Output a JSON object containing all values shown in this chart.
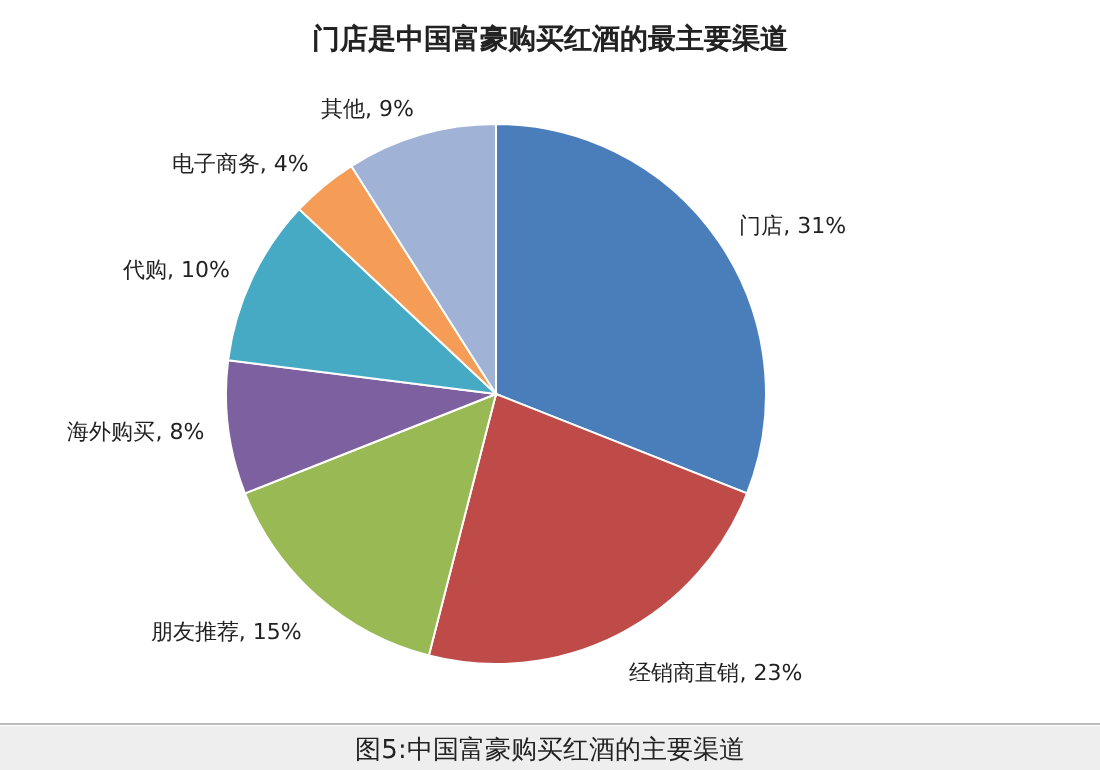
{
  "chart_data": {
    "type": "pie",
    "title": "门店是中国富豪购买红酒的最主要渠道",
    "categories": [
      "门店",
      "经销商直销",
      "朋友推荐",
      "海外购买",
      "代购",
      "电子商务",
      "其他"
    ],
    "values": [
      31,
      23,
      15,
      8,
      10,
      4,
      9
    ],
    "value_labels": [
      "31%",
      "23%",
      "15%",
      "8%",
      "10%",
      "4%",
      "9%"
    ],
    "colors": [
      "#4a7ebb",
      "#be4b48",
      "#98b954",
      "#7d60a0",
      "#46aac5",
      "#f59d56",
      "#a0b2d6"
    ],
    "legend": false,
    "annotations": [
      "图5:中国富豪购买红酒的主要渠道"
    ]
  }
}
